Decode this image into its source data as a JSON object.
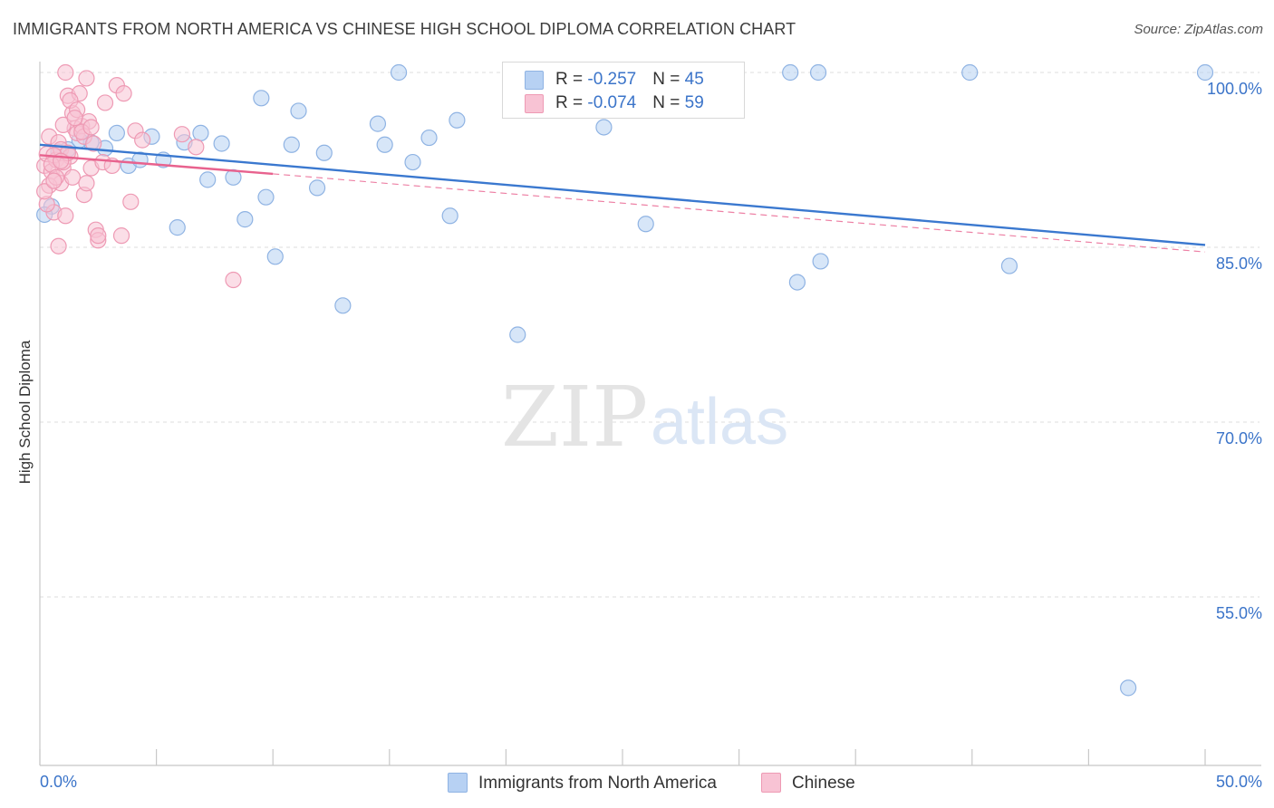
{
  "title": "IMMIGRANTS FROM NORTH AMERICA VS CHINESE HIGH SCHOOL DIPLOMA CORRELATION CHART",
  "source": "Source: ZipAtlas.com",
  "watermark": {
    "zip": "ZIP",
    "atlas": "atlas"
  },
  "colors": {
    "blue_fill": "#b7d1f3",
    "blue_stroke": "#8fb3e3",
    "blue_line": "#3a78cf",
    "pink_fill": "#f8c3d4",
    "pink_stroke": "#ee9ab4",
    "pink_line": "#e8628e",
    "axis_text": "#3b74c9",
    "grid": "#dcdcdc"
  },
  "legend_top": [
    {
      "r_label": "R = ",
      "r_value": "-0.257",
      "n_label": "N = ",
      "n_value": "45"
    },
    {
      "r_label": "R = ",
      "r_value": "-0.074",
      "n_label": "N = ",
      "n_value": "59"
    }
  ],
  "legend_bottom": [
    "Immigrants from North America",
    "Chinese"
  ],
  "chart_data": {
    "type": "scatter",
    "title": "IMMIGRANTS FROM NORTH AMERICA VS CHINESE HIGH SCHOOL DIPLOMA CORRELATION CHART",
    "xlabel": "",
    "ylabel": "High School Diploma",
    "xlim": [
      0,
      50
    ],
    "ylim": [
      39.0,
      101.0
    ],
    "x_tick_labels": [
      "0.0%",
      "50.0%"
    ],
    "y_ticks": [
      100,
      85,
      70,
      55
    ],
    "y_tick_labels": [
      "100.0%",
      "85.0%",
      "70.0%",
      "55.0%"
    ],
    "grid": true,
    "series": [
      {
        "name": "Immigrants from North America",
        "color": "blue",
        "points": [
          [
            0.5,
            88.5
          ],
          [
            1.2,
            93.4
          ],
          [
            2.2,
            94.0
          ],
          [
            2.8,
            93.5
          ],
          [
            3.3,
            94.8
          ],
          [
            3.8,
            92.0
          ],
          [
            4.3,
            92.5
          ],
          [
            4.8,
            94.5
          ],
          [
            5.3,
            92.5
          ],
          [
            5.9,
            86.7
          ],
          [
            6.2,
            94.0
          ],
          [
            6.9,
            94.8
          ],
          [
            7.2,
            90.8
          ],
          [
            7.8,
            93.9
          ],
          [
            8.3,
            91.0
          ],
          [
            8.8,
            87.4
          ],
          [
            9.5,
            97.8
          ],
          [
            9.7,
            89.3
          ],
          [
            10.1,
            84.2
          ],
          [
            10.8,
            93.8
          ],
          [
            11.1,
            96.7
          ],
          [
            11.9,
            90.1
          ],
          [
            12.2,
            93.1
          ],
          [
            13.0,
            80.0
          ],
          [
            14.5,
            95.6
          ],
          [
            14.8,
            93.8
          ],
          [
            15.4,
            100.0
          ],
          [
            16.0,
            92.3
          ],
          [
            16.7,
            94.4
          ],
          [
            17.6,
            87.7
          ],
          [
            17.9,
            95.9
          ],
          [
            20.5,
            77.5
          ],
          [
            24.2,
            95.3
          ],
          [
            26.0,
            87.0
          ],
          [
            32.5,
            82.0
          ],
          [
            33.5,
            83.8
          ],
          [
            32.2,
            100.0
          ],
          [
            33.4,
            100.0
          ],
          [
            39.9,
            100.0
          ],
          [
            41.6,
            83.4
          ],
          [
            50.0,
            100.0
          ],
          [
            46.7,
            47.2
          ],
          [
            0.2,
            87.8
          ],
          [
            1.7,
            94.2
          ],
          [
            0.8,
            93.2
          ]
        ]
      },
      {
        "name": "Chinese",
        "color": "pink",
        "points": [
          [
            0.2,
            92.0
          ],
          [
            0.3,
            93.0
          ],
          [
            0.4,
            94.5
          ],
          [
            0.5,
            91.5
          ],
          [
            0.6,
            88.0
          ],
          [
            0.7,
            92.5
          ],
          [
            0.8,
            94.0
          ],
          [
            0.9,
            93.4
          ],
          [
            1.0,
            91.8
          ],
          [
            1.1,
            100.0
          ],
          [
            1.2,
            98.0
          ],
          [
            1.3,
            92.8
          ],
          [
            1.4,
            96.5
          ],
          [
            1.5,
            95.2
          ],
          [
            1.6,
            94.8
          ],
          [
            1.7,
            98.2
          ],
          [
            1.8,
            95.4
          ],
          [
            1.9,
            94.5
          ],
          [
            2.0,
            99.5
          ],
          [
            2.1,
            95.8
          ],
          [
            2.2,
            91.8
          ],
          [
            2.4,
            86.5
          ],
          [
            2.5,
            85.6
          ],
          [
            2.7,
            92.3
          ],
          [
            2.8,
            97.4
          ],
          [
            3.1,
            92.0
          ],
          [
            3.3,
            98.9
          ],
          [
            3.6,
            98.2
          ],
          [
            3.9,
            88.9
          ],
          [
            4.1,
            95.0
          ],
          [
            4.4,
            94.2
          ],
          [
            6.1,
            94.7
          ],
          [
            6.7,
            93.6
          ],
          [
            8.3,
            82.2
          ],
          [
            0.9,
            90.5
          ],
          [
            1.0,
            92.3
          ],
          [
            1.1,
            87.7
          ],
          [
            1.2,
            93.1
          ],
          [
            0.8,
            85.1
          ],
          [
            0.6,
            92.9
          ],
          [
            0.4,
            90.3
          ],
          [
            0.3,
            88.7
          ],
          [
            1.4,
            91.0
          ],
          [
            1.9,
            89.5
          ],
          [
            2.0,
            90.5
          ],
          [
            2.5,
            86.0
          ],
          [
            1.3,
            97.6
          ],
          [
            0.5,
            92.1
          ],
          [
            0.7,
            91.0
          ],
          [
            1.6,
            96.8
          ],
          [
            0.2,
            89.8
          ],
          [
            1.0,
            95.5
          ],
          [
            3.5,
            86.0
          ],
          [
            0.9,
            92.4
          ],
          [
            1.8,
            94.9
          ],
          [
            2.2,
            95.3
          ],
          [
            0.6,
            90.7
          ],
          [
            1.5,
            96.1
          ],
          [
            2.3,
            93.9
          ]
        ]
      }
    ],
    "trend_lines": [
      {
        "series": "Immigrants from North America",
        "style": "solid",
        "x": [
          0,
          50
        ],
        "y": [
          93.8,
          85.2
        ]
      },
      {
        "series": "Chinese",
        "style": "solid",
        "x": [
          0,
          10
        ],
        "y": [
          92.9,
          91.3
        ]
      },
      {
        "series": "Chinese",
        "style": "dashed",
        "x": [
          10,
          50
        ],
        "y": [
          91.3,
          84.6
        ]
      }
    ]
  }
}
